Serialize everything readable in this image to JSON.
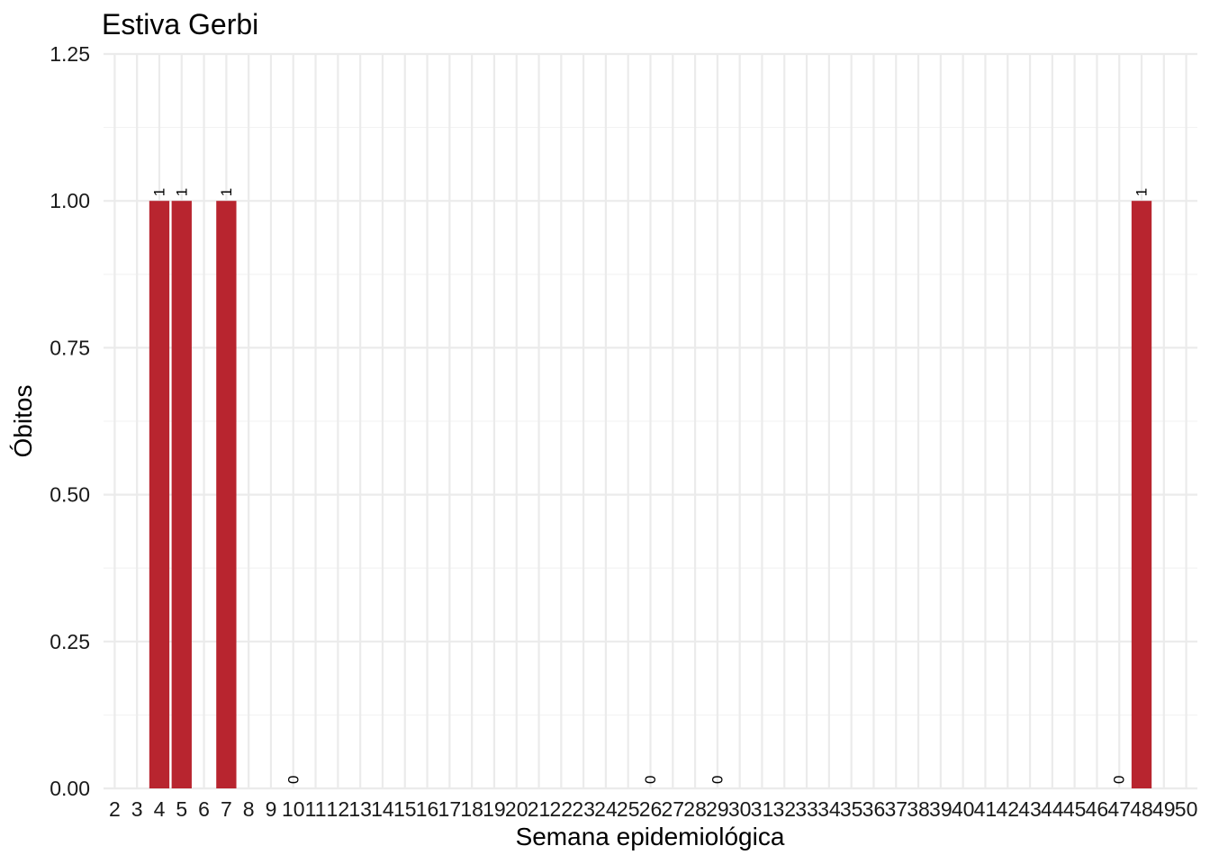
{
  "chart_data": {
    "type": "bar",
    "title": "Estiva Gerbi",
    "xlabel": "Semana epidemiológica",
    "ylabel": "Óbitos",
    "categories": [
      "2",
      "3",
      "4",
      "5",
      "6",
      "7",
      "8",
      "9",
      "10",
      "11",
      "12",
      "13",
      "14",
      "15",
      "16",
      "17",
      "18",
      "19",
      "20",
      "21",
      "22",
      "23",
      "24",
      "25",
      "26",
      "27",
      "28",
      "29",
      "30",
      "31",
      "32",
      "33",
      "34",
      "35",
      "36",
      "37",
      "38",
      "39",
      "40",
      "41",
      "42",
      "43",
      "44",
      "45",
      "46",
      "47",
      "48",
      "49",
      "50"
    ],
    "values": [
      null,
      null,
      1,
      1,
      null,
      1,
      null,
      null,
      0,
      null,
      null,
      null,
      null,
      null,
      null,
      null,
      null,
      null,
      null,
      null,
      null,
      null,
      null,
      null,
      0,
      null,
      null,
      0,
      null,
      null,
      null,
      null,
      null,
      null,
      null,
      null,
      null,
      null,
      null,
      null,
      null,
      null,
      null,
      null,
      null,
      0,
      1,
      null,
      null
    ],
    "data_labels": [
      {
        "x": "4",
        "label": "1"
      },
      {
        "x": "5",
        "label": "1"
      },
      {
        "x": "7",
        "label": "1"
      },
      {
        "x": "10",
        "label": "0"
      },
      {
        "x": "26",
        "label": "0"
      },
      {
        "x": "29",
        "label": "0"
      },
      {
        "x": "47",
        "label": "0"
      },
      {
        "x": "48",
        "label": "1"
      }
    ],
    "ylim": [
      0,
      1.25
    ],
    "yticks": [
      "0.00",
      "0.25",
      "0.50",
      "0.75",
      "1.00",
      "1.25"
    ],
    "bar_color": "#b8252f",
    "grid": true,
    "legend": "none"
  }
}
